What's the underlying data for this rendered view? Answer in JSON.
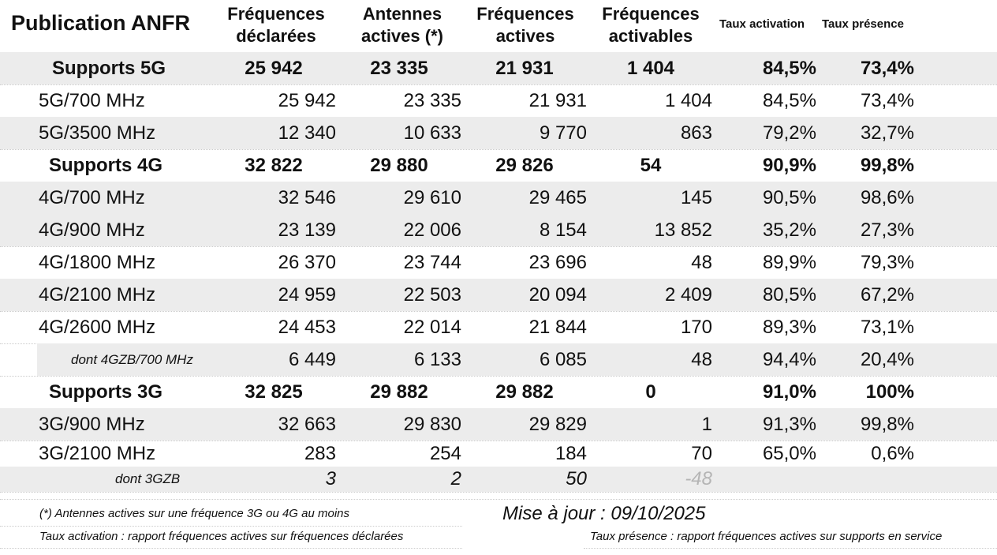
{
  "title": "Publication ANFR",
  "headers": [
    {
      "l1": "Fréquences",
      "l2": "déclarées"
    },
    {
      "l1": "Antennes",
      "l2": "actives (*)"
    },
    {
      "l1": "Fréquences",
      "l2": "actives"
    },
    {
      "l1": "Fréquences",
      "l2": "activables"
    },
    {
      "l1": "Taux activation",
      "l2": ""
    },
    {
      "l1": "Taux présence",
      "l2": ""
    }
  ],
  "rows": [
    {
      "type": "summary",
      "label": "Supports 5G",
      "values": [
        "25 942",
        "23 335",
        "21 931",
        "1 404",
        "84,5%",
        "73,4%"
      ]
    },
    {
      "type": "band",
      "label": "5G/700 MHz",
      "values": [
        "25 942",
        "23 335",
        "21 931",
        "1 404",
        "84,5%",
        "73,4%"
      ]
    },
    {
      "type": "band",
      "label": "5G/3500 MHz",
      "values": [
        "12 340",
        "10 633",
        "9 770",
        "863",
        "79,2%",
        "32,7%"
      ]
    },
    {
      "type": "summary",
      "label": "Supports 4G",
      "values": [
        "32 822",
        "29 880",
        "29 826",
        "54",
        "90,9%",
        "99,8%"
      ]
    },
    {
      "type": "band",
      "label": "4G/700 MHz",
      "values": [
        "32 546",
        "29 610",
        "29 465",
        "145",
        "90,5%",
        "98,6%"
      ]
    },
    {
      "type": "band",
      "label": "4G/900 MHz",
      "values": [
        "23 139",
        "22 006",
        "8 154",
        "13 852",
        "35,2%",
        "27,3%"
      ]
    },
    {
      "type": "band",
      "label": "4G/1800 MHz",
      "values": [
        "26 370",
        "23 744",
        "23 696",
        "48",
        "89,9%",
        "79,3%"
      ]
    },
    {
      "type": "band",
      "label": "4G/2100 MHz",
      "values": [
        "24 959",
        "22 503",
        "20 094",
        "2 409",
        "80,5%",
        "67,2%"
      ]
    },
    {
      "type": "band",
      "label": "4G/2600 MHz",
      "values": [
        "24 453",
        "22 014",
        "21 844",
        "170",
        "89,3%",
        "73,1%"
      ]
    },
    {
      "type": "sub",
      "label": "dont 4GZB/700 MHz",
      "values": [
        "6 449",
        "6 133",
        "6 085",
        "48",
        "94,4%",
        "20,4%"
      ]
    },
    {
      "type": "summary",
      "label": "Supports 3G",
      "values": [
        "32 825",
        "29 882",
        "29 882",
        "0",
        "91,0%",
        "100%"
      ]
    },
    {
      "type": "band",
      "label": "3G/900 MHz",
      "values": [
        "32 663",
        "29 830",
        "29 829",
        "1",
        "91,3%",
        "99,8%"
      ]
    },
    {
      "type": "band",
      "label": "3G/2100 MHz",
      "values": [
        "283",
        "254",
        "184",
        "70",
        "65,0%",
        "0,6%"
      ]
    },
    {
      "type": "sub3",
      "label": "dont 3GZB",
      "values": [
        "3",
        "2",
        "50",
        "-48",
        "",
        ""
      ]
    }
  ],
  "footer": {
    "note": "(*) Antennes actives sur une fréquence 3G ou 4G au moins",
    "updated": "Mise à jour : 09/10/2025",
    "activation_def": "Taux activation : rapport fréquences actives sur fréquences déclarées",
    "presence_def": "Taux présence : rapport fréquences actives sur supports en service"
  },
  "colors": {
    "row_shade": "#ececec",
    "muted": "#b5b5b5"
  }
}
